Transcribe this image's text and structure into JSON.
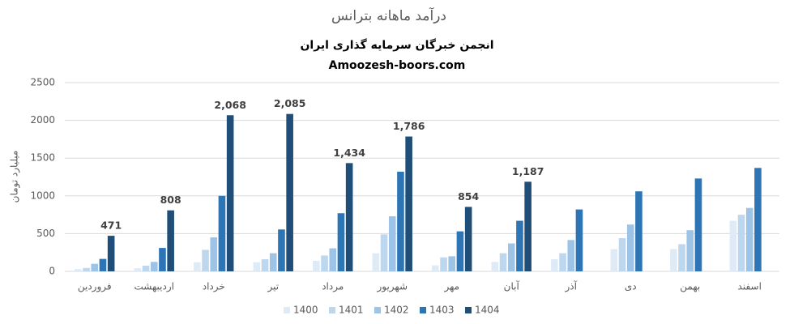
{
  "chart_data": {
    "type": "bar",
    "title": "درآمد ماهانه بترانس",
    "subtitle": "انجمن خبرگان سرمایه گذاری ایران",
    "source": "Amoozesh-boors.com",
    "y_label": "میلیارد تومان",
    "categories": [
      "فروردین",
      "اردیبهشت",
      "خرداد",
      "تیر",
      "مرداد",
      "شهریور",
      "مهر",
      "آبان",
      "آذر",
      "دی",
      "بهمن",
      "اسفند"
    ],
    "series": [
      {
        "name": "1400",
        "color": "#deebf7",
        "values": [
          30,
          40,
          120,
          120,
          140,
          240,
          80,
          125,
          160,
          295,
          295,
          670
        ]
      },
      {
        "name": "1401",
        "color": "#bdd7ee",
        "values": [
          45,
          75,
          285,
          160,
          210,
          490,
          185,
          240,
          240,
          440,
          360,
          750
        ]
      },
      {
        "name": "1402",
        "color": "#9dc3e6",
        "values": [
          100,
          125,
          450,
          240,
          305,
          730,
          200,
          370,
          415,
          620,
          545,
          840
        ]
      },
      {
        "name": "1403",
        "color": "#2e75b6",
        "values": [
          165,
          310,
          1000,
          555,
          770,
          1320,
          530,
          670,
          820,
          1060,
          1230,
          1370
        ]
      },
      {
        "name": "1404",
        "color": "#1f4e79",
        "values": [
          471,
          808,
          2068,
          2085,
          1434,
          1786,
          854,
          1187,
          null,
          null,
          null,
          null
        ],
        "value_labels": [
          "471",
          "808",
          "2,068",
          "2,085",
          "1,434",
          "1,786",
          "854",
          "1,187",
          null,
          null,
          null,
          null
        ]
      }
    ],
    "ylim": [
      0,
      2500
    ],
    "yticks": [
      0,
      500,
      1000,
      1500,
      2000,
      2500
    ],
    "grid": true,
    "legend": "bottom"
  }
}
